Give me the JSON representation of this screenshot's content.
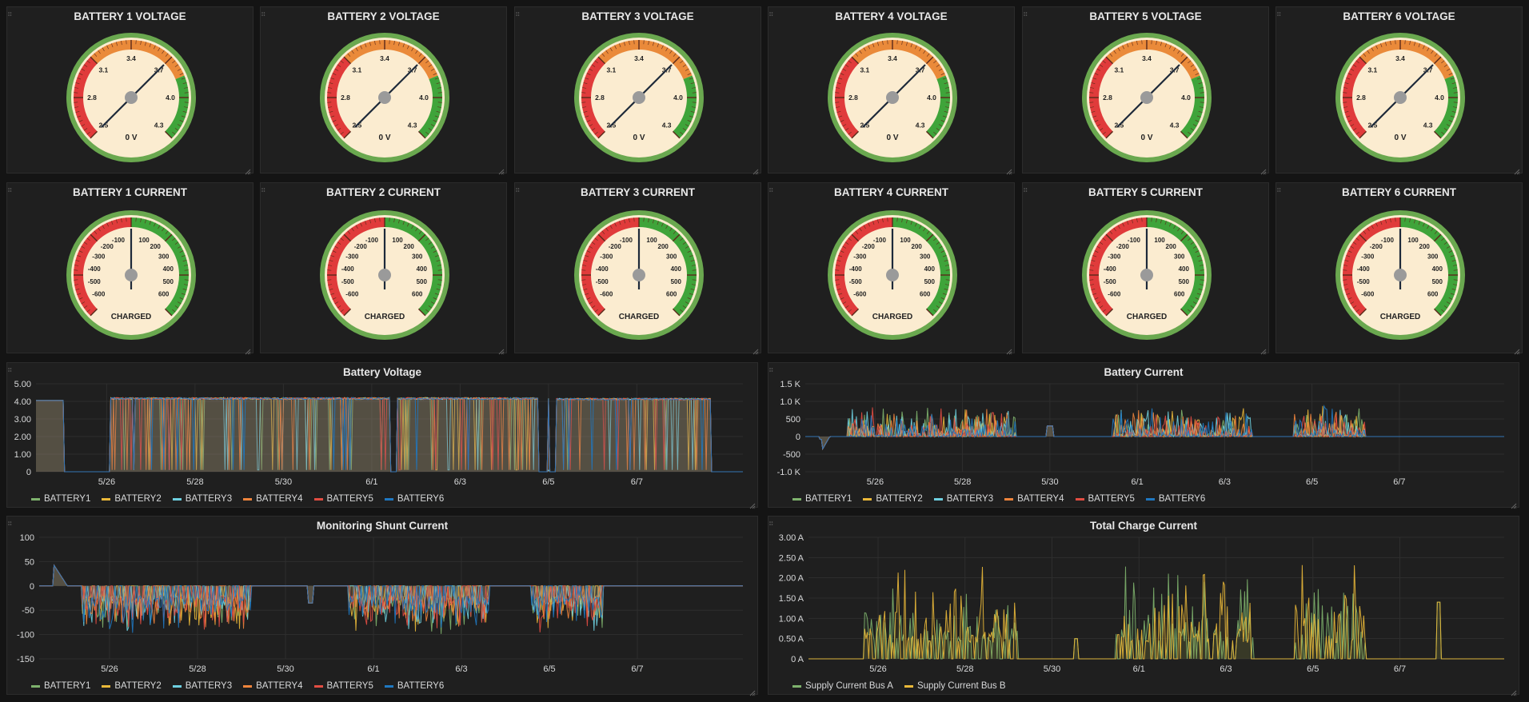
{
  "voltage_gauges": [
    {
      "title": "BATTERY 1 VOLTAGE",
      "readout": "0 V",
      "ticks": [
        "2.5",
        "2.8",
        "3.1",
        "3.4",
        "3.7",
        "4.0",
        "4.3"
      ]
    },
    {
      "title": "BATTERY 2 VOLTAGE",
      "readout": "0 V",
      "ticks": [
        "2.5",
        "2.8",
        "3.1",
        "3.4",
        "3.7",
        "4.0",
        "4.3"
      ]
    },
    {
      "title": "BATTERY 3 VOLTAGE",
      "readout": "0 V",
      "ticks": [
        "2.5",
        "2.8",
        "3.1",
        "3.4",
        "3.7",
        "4.0",
        "4.3"
      ]
    },
    {
      "title": "BATTERY 4 VOLTAGE",
      "readout": "0 V",
      "ticks": [
        "2.5",
        "2.8",
        "3.1",
        "3.4",
        "3.7",
        "4.0",
        "4.3"
      ]
    },
    {
      "title": "BATTERY 5 VOLTAGE",
      "readout": "0 V",
      "ticks": [
        "2.5",
        "2.8",
        "3.1",
        "3.4",
        "3.7",
        "4.0",
        "4.3"
      ]
    },
    {
      "title": "BATTERY 6 VOLTAGE",
      "readout": "0 V",
      "ticks": [
        "2.5",
        "2.8",
        "3.1",
        "3.4",
        "3.7",
        "4.0",
        "4.3"
      ]
    }
  ],
  "current_gauges": [
    {
      "title": "BATTERY 1 CURRENT",
      "readout": "CHARGED"
    },
    {
      "title": "BATTERY 2 CURRENT",
      "readout": "CHARGED"
    },
    {
      "title": "BATTERY 3 CURRENT",
      "readout": "CHARGED"
    },
    {
      "title": "BATTERY 4 CURRENT",
      "readout": "CHARGED"
    },
    {
      "title": "BATTERY 5 CURRENT",
      "readout": "CHARGED"
    },
    {
      "title": "BATTERY 6 CURRENT",
      "readout": "CHARGED"
    }
  ],
  "current_ticks": {
    "left": [
      "-100",
      "-200",
      "-300",
      "-400",
      "-500",
      "-600"
    ],
    "right": [
      "100",
      "200",
      "300",
      "400",
      "500",
      "600"
    ]
  },
  "colors": {
    "red": "#e03b3b",
    "orange": "#ea8a3a",
    "green": "#3fa43a",
    "face": "#fbecd0",
    "rim": "#6aa84f",
    "needle": "#1e2a3a"
  },
  "chart_data": [
    {
      "type": "area",
      "title": "Battery Voltage",
      "x_ticks": [
        "5/26",
        "5/28",
        "5/30",
        "6/1",
        "6/3",
        "6/5",
        "6/7"
      ],
      "y_ticks": [
        "5.00",
        "4.00",
        "3.00",
        "2.00",
        "1.00",
        "0"
      ],
      "ylim": [
        0,
        5
      ],
      "series": [
        {
          "name": "BATTERY1",
          "color": "#7eb26d"
        },
        {
          "name": "BATTERY2",
          "color": "#eab839"
        },
        {
          "name": "BATTERY3",
          "color": "#6ed0e0"
        },
        {
          "name": "BATTERY4",
          "color": "#ef843c"
        },
        {
          "name": "BATTERY5",
          "color": "#e24d42"
        },
        {
          "name": "BATTERY6",
          "color": "#1f78c1"
        }
      ],
      "shape": "voltage"
    },
    {
      "type": "area",
      "title": "Battery Current",
      "x_ticks": [
        "5/26",
        "5/28",
        "5/30",
        "6/1",
        "6/3",
        "6/5",
        "6/7"
      ],
      "y_ticks": [
        "1.5 K",
        "1.0 K",
        "500",
        "0",
        "-500",
        "-1.0 K"
      ],
      "ylim": [
        -1000,
        1500
      ],
      "series": [
        {
          "name": "BATTERY1",
          "color": "#7eb26d"
        },
        {
          "name": "BATTERY2",
          "color": "#eab839"
        },
        {
          "name": "BATTERY3",
          "color": "#6ed0e0"
        },
        {
          "name": "BATTERY4",
          "color": "#ef843c"
        },
        {
          "name": "BATTERY5",
          "color": "#e24d42"
        },
        {
          "name": "BATTERY6",
          "color": "#1f78c1"
        }
      ],
      "shape": "current"
    },
    {
      "type": "area",
      "title": "Monitoring Shunt Current",
      "x_ticks": [
        "5/26",
        "5/28",
        "5/30",
        "6/1",
        "6/3",
        "6/5",
        "6/7"
      ],
      "y_ticks": [
        "100",
        "50",
        "0",
        "-50",
        "-100",
        "-150"
      ],
      "ylim": [
        -150,
        100
      ],
      "series": [
        {
          "name": "BATTERY1",
          "color": "#7eb26d"
        },
        {
          "name": "BATTERY2",
          "color": "#eab839"
        },
        {
          "name": "BATTERY3",
          "color": "#6ed0e0"
        },
        {
          "name": "BATTERY4",
          "color": "#ef843c"
        },
        {
          "name": "BATTERY5",
          "color": "#e24d42"
        },
        {
          "name": "BATTERY6",
          "color": "#1f78c1"
        }
      ],
      "shape": "shunt"
    },
    {
      "type": "area",
      "title": "Total Charge Current",
      "x_ticks": [
        "5/26",
        "5/28",
        "5/30",
        "6/1",
        "6/3",
        "6/5",
        "6/7"
      ],
      "y_ticks": [
        "3.00 A",
        "2.50 A",
        "2.00 A",
        "1.50 A",
        "1.00 A",
        "0.50 A",
        "0 A"
      ],
      "ylim": [
        0,
        3
      ],
      "series": [
        {
          "name": "Supply Current Bus A",
          "color": "#7eb26d"
        },
        {
          "name": "Supply Current Bus B",
          "color": "#eab839"
        }
      ],
      "shape": "charge"
    }
  ]
}
